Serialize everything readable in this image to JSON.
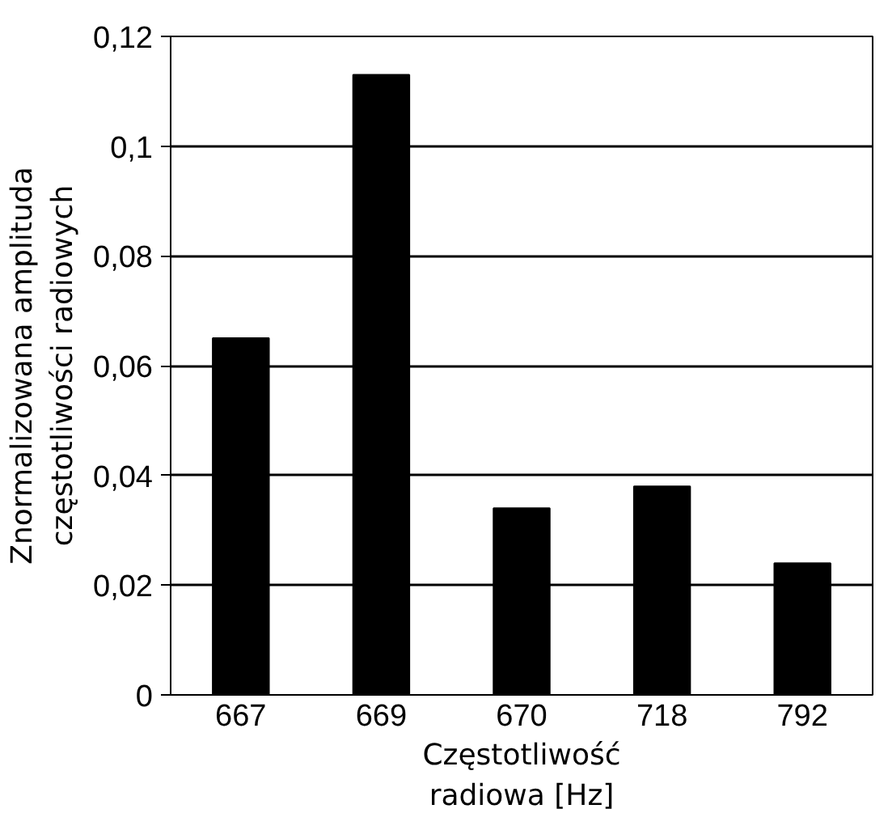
{
  "chart_data": {
    "type": "bar",
    "xlabel": "Częstotliwość\nradiowa [Hz]",
    "ylabel": "Znormalizowana amplituda\nczęstotliwości radiowych",
    "categories": [
      "667",
      "669",
      "670",
      "718",
      "792"
    ],
    "values": [
      0.065,
      0.113,
      0.034,
      0.038,
      0.024
    ],
    "color": "#000000",
    "ylim": [
      0,
      0.12
    ],
    "yticks": [
      0,
      {
        "value": 0.02,
        "label": "0,02"
      },
      {
        "value": 0.04,
        "label": "0,04"
      },
      {
        "value": 0.06,
        "label": "0,06"
      },
      {
        "value": 0.08,
        "label": "0,08"
      },
      {
        "value": 0.1,
        "label": "0,1"
      },
      {
        "value": 0.12,
        "label": "0,12"
      }
    ],
    "grid": "y"
  }
}
